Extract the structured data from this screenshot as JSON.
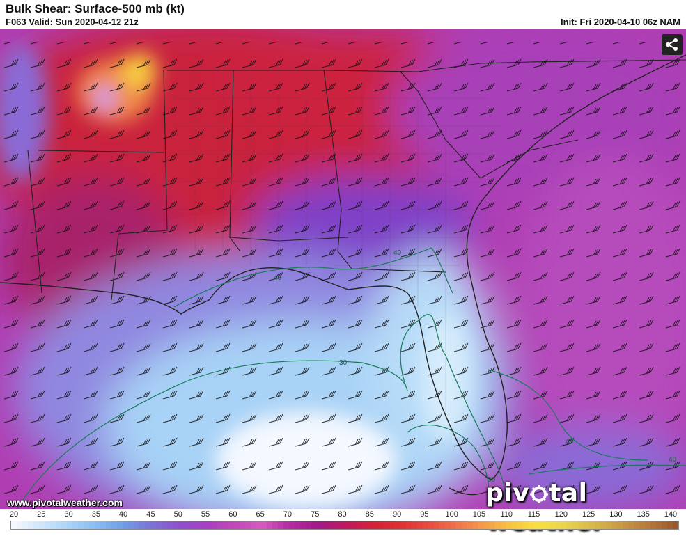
{
  "header": {
    "title": "Bulk Shear: Surface-500 mb (kt)",
    "valid": "F063 Valid: Sun 2020-04-12 21z",
    "init": "Init: Fri 2020-04-10 06z NAM"
  },
  "watermark": {
    "url": "www.pivotalweather.com",
    "brand_left": "piv",
    "brand_right": "tal weather"
  },
  "share": {
    "icon": "share-icon"
  },
  "map": {
    "contour_labels": [
      "40",
      "40",
      "40",
      "30",
      "30",
      "40"
    ]
  },
  "colorbar": {
    "ticks": [
      "20",
      "25",
      "30",
      "35",
      "40",
      "45",
      "50",
      "55",
      "60",
      "65",
      "70",
      "75",
      "80",
      "85",
      "90",
      "95",
      "100",
      "105",
      "110",
      "115",
      "120",
      "125",
      "130",
      "135",
      "140"
    ],
    "colors": [
      "#f4f8ff",
      "#cfe6fb",
      "#a9d3f7",
      "#86bdf1",
      "#6f9ce6",
      "#7c72d8",
      "#8f4fd0",
      "#a83fc4",
      "#c447b8",
      "#d65ac0",
      "#b52aa0",
      "#a21a8a",
      "#c01860",
      "#d52038",
      "#e03030",
      "#e84a40",
      "#f0704a",
      "#f59a4a",
      "#f8c440",
      "#f8e040",
      "#e9d44a",
      "#d8b84a",
      "#c89a44",
      "#b67a3a",
      "#9a5a2e"
    ]
  }
}
